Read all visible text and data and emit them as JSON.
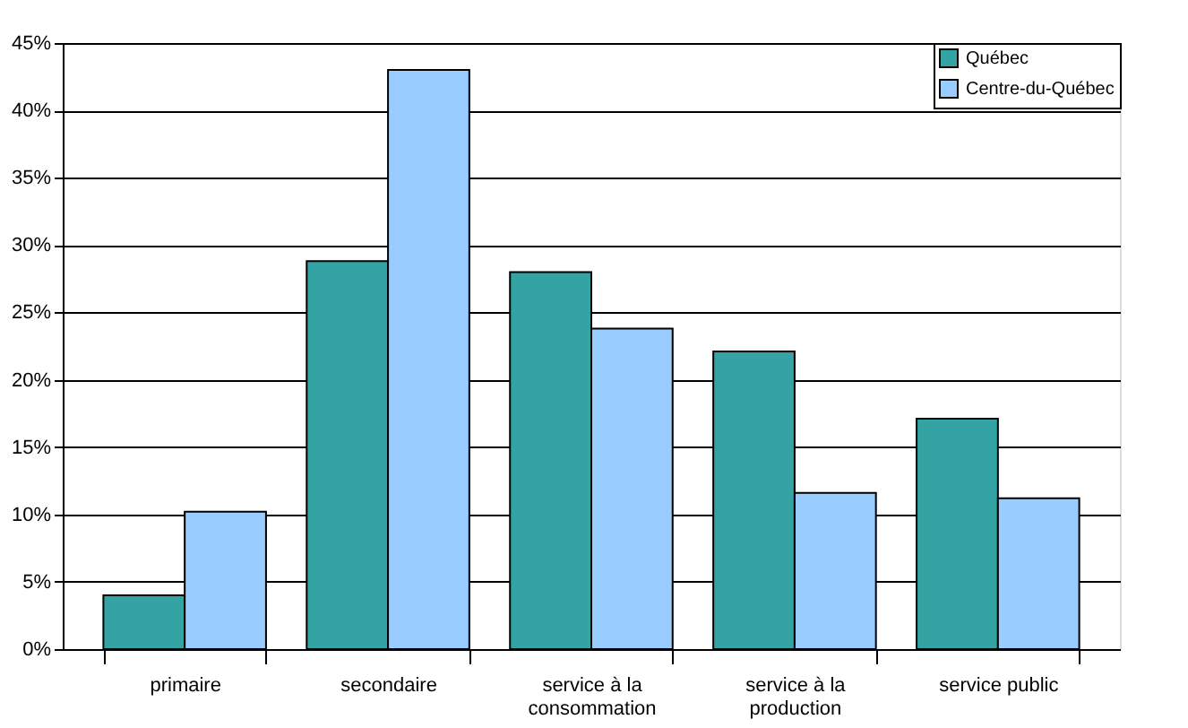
{
  "chart_data": {
    "type": "bar",
    "categories": [
      "primaire",
      "secondaire",
      "service à la consommation",
      "service à la production",
      "service public"
    ],
    "series": [
      {
        "name": "Québec",
        "color": "#33a3a3",
        "values": [
          4.0,
          28.8,
          28.0,
          22.1,
          17.1
        ]
      },
      {
        "name": "Centre-du-Québec",
        "color": "#99ccff",
        "values": [
          10.2,
          43.0,
          23.8,
          11.6,
          11.2
        ]
      }
    ],
    "ylim": [
      0,
      45
    ],
    "yticks": [
      {
        "value": 0,
        "label": "0%"
      },
      {
        "value": 5,
        "label": "5%"
      },
      {
        "value": 10,
        "label": "10%"
      },
      {
        "value": 15,
        "label": "15%"
      },
      {
        "value": 20,
        "label": "20%"
      },
      {
        "value": 25,
        "label": "25%"
      },
      {
        "value": 30,
        "label": "30%"
      },
      {
        "value": 35,
        "label": "35%"
      },
      {
        "value": 40,
        "label": "40%"
      },
      {
        "value": 45,
        "label": "45%"
      }
    ],
    "grid": "y",
    "legend": "top right"
  }
}
